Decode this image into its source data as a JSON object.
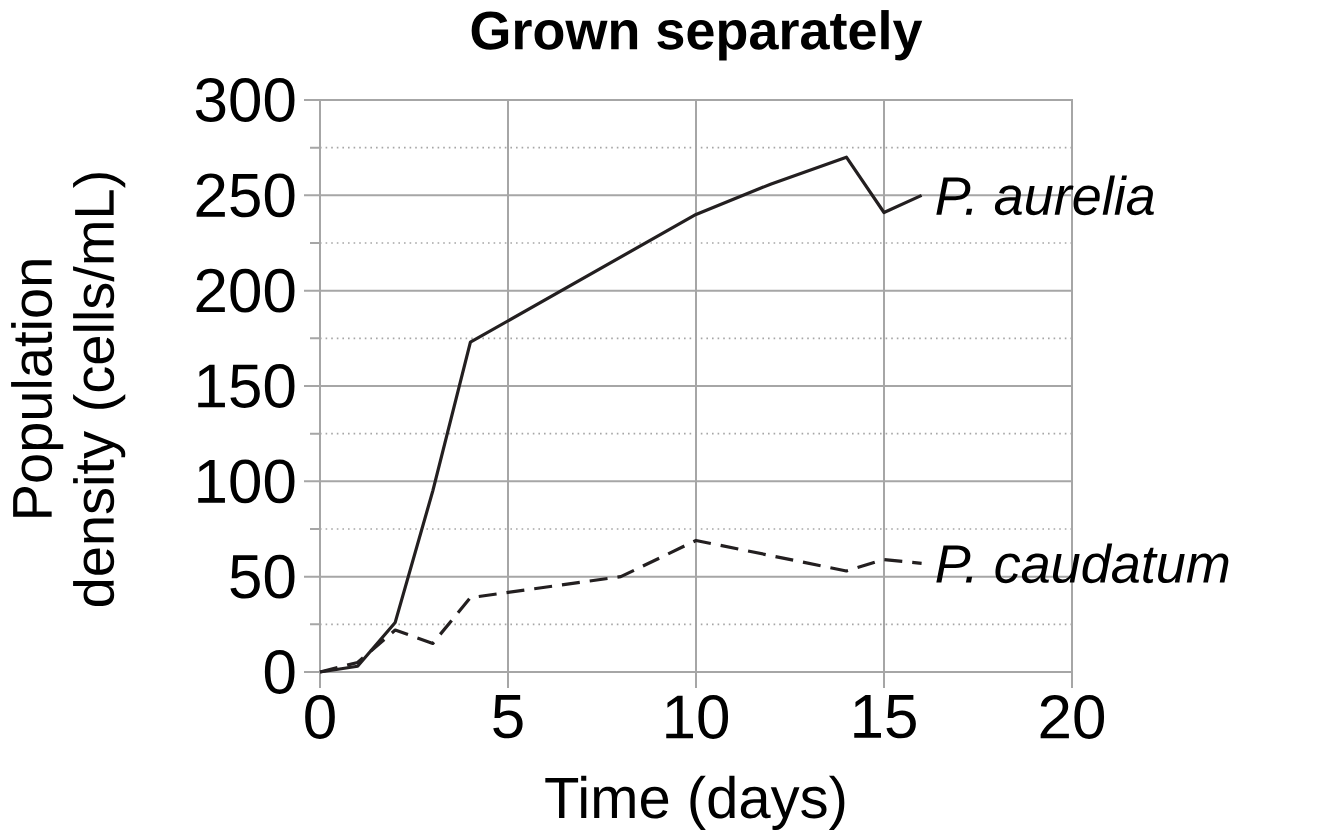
{
  "chart_data": {
    "type": "line",
    "title": "Grown separately",
    "xlabel": "Time (days)",
    "ylabel": "Population density (cells/mL)",
    "xlim": [
      0,
      20
    ],
    "ylim": [
      0,
      300
    ],
    "xticks": [
      0,
      5,
      10,
      15,
      20
    ],
    "yticks": [
      0,
      {
        "value": 25,
        "label": null
      },
      50,
      {
        "value": 75,
        "label": null
      },
      100,
      {
        "value": 125,
        "label": null
      },
      150,
      {
        "value": 175,
        "label": null
      },
      200,
      {
        "value": 225,
        "label": null
      },
      250,
      {
        "value": 275,
        "label": null
      },
      300
    ],
    "grid": true,
    "series": [
      {
        "name": "P. aurelia",
        "color": "#231f20",
        "line_style": "solid",
        "x": [
          0,
          1,
          2,
          3,
          4,
          10,
          12,
          14,
          15,
          16
        ],
        "values": [
          0,
          3,
          26,
          95,
          173,
          240,
          256,
          270,
          241,
          250
        ]
      },
      {
        "name": "P. caudatum",
        "color": "#231f20",
        "line_style": "dashed",
        "x": [
          0,
          1,
          2,
          3,
          4,
          8,
          10,
          14,
          15,
          16
        ],
        "values": [
          0,
          5,
          22,
          15,
          39,
          50,
          69,
          53,
          59,
          57
        ]
      }
    ]
  }
}
